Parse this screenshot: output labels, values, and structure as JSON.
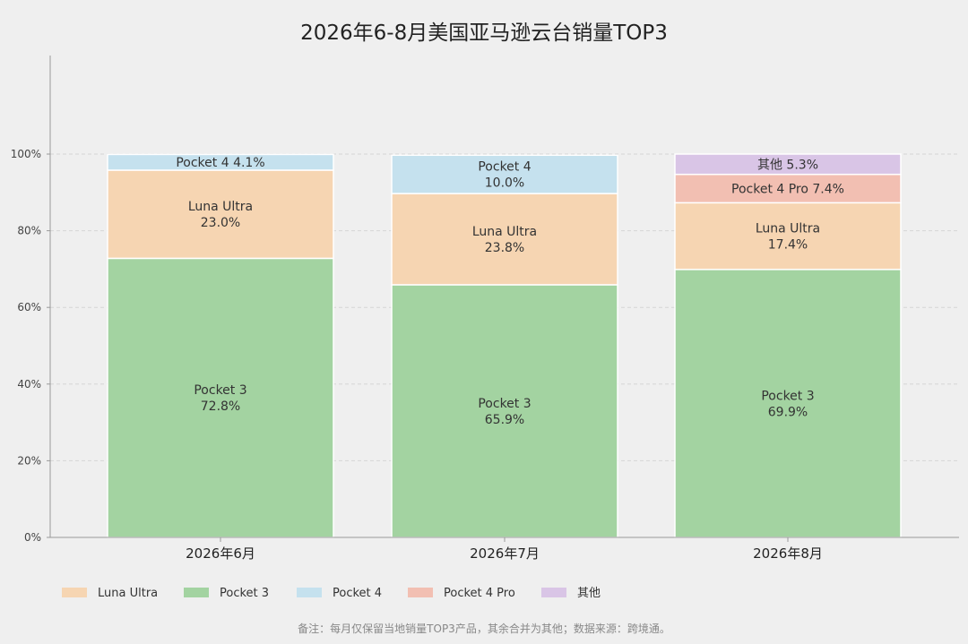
{
  "chart_data": {
    "type": "bar",
    "stacked": true,
    "title": "2026年6-8月美国亚马逊云台销量TOP3",
    "xlabel": "",
    "ylabel": "",
    "categories": [
      "2026年6月",
      "2026年7月",
      "2026年8月"
    ],
    "ylim": [
      0,
      100
    ],
    "yticks": [
      0,
      20,
      40,
      60,
      80,
      100
    ],
    "ytick_labels": [
      "0%",
      "20%",
      "40%",
      "60%",
      "80%",
      "100%"
    ],
    "grid": true,
    "legend_position": "bottom",
    "series": [
      {
        "name": "Pocket 3",
        "color": "#a3d3a1",
        "values": [
          72.8,
          65.9,
          69.9
        ]
      },
      {
        "name": "Luna Ultra",
        "color": "#f6d5b2",
        "values": [
          23.0,
          23.8,
          17.4
        ]
      },
      {
        "name": "Pocket 4",
        "color": "#c5e1ee",
        "values": [
          4.1,
          10.0,
          null
        ]
      },
      {
        "name": "Pocket 4 Pro",
        "color": "#f2bfb2",
        "values": [
          null,
          null,
          7.4
        ]
      },
      {
        "name": "其他",
        "color": "#d9c5e6",
        "values": [
          null,
          null,
          5.3
        ]
      }
    ],
    "segment_labels": [
      [
        {
          "series": "Pocket 3",
          "lines": [
            "Pocket 3",
            "72.8%"
          ]
        },
        {
          "series": "Luna Ultra",
          "lines": [
            "Luna Ultra",
            "23.0%"
          ]
        },
        {
          "series": "Pocket 4",
          "lines": [
            "Pocket 4 4.1%"
          ]
        }
      ],
      [
        {
          "series": "Pocket 3",
          "lines": [
            "Pocket 3",
            "65.9%"
          ]
        },
        {
          "series": "Luna Ultra",
          "lines": [
            "Luna Ultra",
            "23.8%"
          ]
        },
        {
          "series": "Pocket 4",
          "lines": [
            "Pocket 4",
            "10.0%"
          ]
        }
      ],
      [
        {
          "series": "Pocket 3",
          "lines": [
            "Pocket 3",
            "69.9%"
          ]
        },
        {
          "series": "Luna Ultra",
          "lines": [
            "Luna Ultra",
            "17.4%"
          ]
        },
        {
          "series": "Pocket 4 Pro",
          "lines": [
            "Pocket 4 Pro 7.4%"
          ]
        },
        {
          "series": "其他",
          "lines": [
            "其他 5.3%"
          ]
        }
      ]
    ],
    "legend": [
      {
        "name": "Luna Ultra",
        "color": "#f6d5b2"
      },
      {
        "name": "Pocket 3",
        "color": "#a3d3a1"
      },
      {
        "name": "Pocket 4",
        "color": "#c5e1ee"
      },
      {
        "name": "Pocket 4 Pro",
        "color": "#f2bfb2"
      },
      {
        "name": "其他",
        "color": "#d9c5e6"
      }
    ],
    "footnote": "备注：每月仅保留当地销量TOP3产品，其余合并为其他；数据来源：跨境通。"
  }
}
